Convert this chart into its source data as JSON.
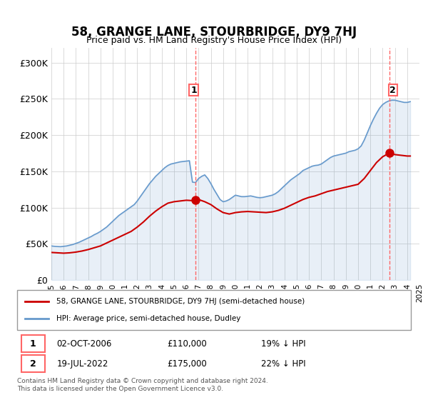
{
  "title": "58, GRANGE LANE, STOURBRIDGE, DY9 7HJ",
  "subtitle": "Price paid vs. HM Land Registry's House Price Index (HPI)",
  "ylabel_ticks": [
    "£0",
    "£50K",
    "£100K",
    "£150K",
    "£200K",
    "£250K",
    "£300K"
  ],
  "ytick_values": [
    0,
    50000,
    100000,
    150000,
    200000,
    250000,
    300000
  ],
  "ylim": [
    0,
    320000
  ],
  "xlim_years": [
    1995,
    2025
  ],
  "legend_line1": "58, GRANGE LANE, STOURBRIDGE, DY9 7HJ (semi-detached house)",
  "legend_line2": "HPI: Average price, semi-detached house, Dudley",
  "marker1_date": "02-OCT-2006",
  "marker1_price": 110000,
  "marker1_pct": "19% ↓ HPI",
  "marker2_date": "19-JUL-2022",
  "marker2_price": 175000,
  "marker2_pct": "22% ↓ HPI",
  "vline1_x": 2006.75,
  "vline2_x": 2022.54,
  "sale1_x": 2006.75,
  "sale1_y": 110000,
  "sale2_x": 2022.54,
  "sale2_y": 175000,
  "footer": "Contains HM Land Registry data © Crown copyright and database right 2024.\nThis data is licensed under the Open Government Licence v3.0.",
  "line_color_red": "#cc0000",
  "line_color_blue": "#6699cc",
  "vline_color": "#ff6666",
  "background_color": "#ffffff",
  "hpi_years": [
    1995.0,
    1995.25,
    1995.5,
    1995.75,
    1996.0,
    1996.25,
    1996.5,
    1996.75,
    1997.0,
    1997.25,
    1997.5,
    1997.75,
    1998.0,
    1998.25,
    1998.5,
    1998.75,
    1999.0,
    1999.25,
    1999.5,
    1999.75,
    2000.0,
    2000.25,
    2000.5,
    2000.75,
    2001.0,
    2001.25,
    2001.5,
    2001.75,
    2002.0,
    2002.25,
    2002.5,
    2002.75,
    2003.0,
    2003.25,
    2003.5,
    2003.75,
    2004.0,
    2004.25,
    2004.5,
    2004.75,
    2005.0,
    2005.25,
    2005.5,
    2005.75,
    2006.0,
    2006.25,
    2006.5,
    2006.75,
    2007.0,
    2007.25,
    2007.5,
    2007.75,
    2008.0,
    2008.25,
    2008.5,
    2008.75,
    2009.0,
    2009.25,
    2009.5,
    2009.75,
    2010.0,
    2010.25,
    2010.5,
    2010.75,
    2011.0,
    2011.25,
    2011.5,
    2011.75,
    2012.0,
    2012.25,
    2012.5,
    2012.75,
    2013.0,
    2013.25,
    2013.5,
    2013.75,
    2014.0,
    2014.25,
    2014.5,
    2014.75,
    2015.0,
    2015.25,
    2015.5,
    2015.75,
    2016.0,
    2016.25,
    2016.5,
    2016.75,
    2017.0,
    2017.25,
    2017.5,
    2017.75,
    2018.0,
    2018.25,
    2018.5,
    2018.75,
    2019.0,
    2019.25,
    2019.5,
    2019.75,
    2020.0,
    2020.25,
    2020.5,
    2020.75,
    2021.0,
    2021.25,
    2021.5,
    2021.75,
    2022.0,
    2022.25,
    2022.5,
    2022.75,
    2023.0,
    2023.25,
    2023.5,
    2023.75,
    2024.0,
    2024.25
  ],
  "hpi_values": [
    47000,
    46500,
    46200,
    46000,
    46500,
    47000,
    48000,
    49000,
    50500,
    52000,
    54000,
    56000,
    58000,
    60000,
    62500,
    64500,
    67000,
    70000,
    73000,
    77000,
    81000,
    85000,
    89000,
    92000,
    95000,
    98000,
    101000,
    104000,
    109000,
    115000,
    121000,
    127000,
    133000,
    138000,
    143000,
    147000,
    151000,
    155000,
    158000,
    160000,
    161000,
    162000,
    163000,
    163500,
    164000,
    164500,
    135000,
    134500,
    140000,
    143000,
    145000,
    140000,
    133000,
    125000,
    118000,
    111000,
    108000,
    109000,
    111000,
    114000,
    117000,
    116000,
    115000,
    115000,
    115500,
    116000,
    115000,
    114000,
    113500,
    114000,
    115000,
    116000,
    117000,
    119000,
    122000,
    126000,
    130000,
    134000,
    138000,
    141000,
    144000,
    147000,
    151000,
    153000,
    155000,
    157000,
    158000,
    158500,
    160000,
    163000,
    166000,
    169000,
    171000,
    172000,
    173000,
    174000,
    175000,
    177000,
    178000,
    179000,
    181000,
    185000,
    193000,
    203000,
    213000,
    222000,
    230000,
    237000,
    242000,
    245000,
    247000,
    248000,
    248000,
    247000,
    246000,
    245000,
    245000,
    246000
  ],
  "red_years": [
    1995.0,
    1995.5,
    1996.0,
    1996.5,
    1997.0,
    1997.5,
    1998.0,
    1998.5,
    1999.0,
    1999.5,
    2000.0,
    2000.5,
    2001.0,
    2001.5,
    2002.0,
    2002.5,
    2003.0,
    2003.5,
    2004.0,
    2004.5,
    2005.0,
    2005.5,
    2006.0,
    2006.5,
    2006.75,
    2007.0,
    2007.5,
    2008.0,
    2008.5,
    2009.0,
    2009.5,
    2010.0,
    2010.5,
    2011.0,
    2011.5,
    2012.0,
    2012.5,
    2013.0,
    2013.5,
    2014.0,
    2014.5,
    2015.0,
    2015.5,
    2016.0,
    2016.5,
    2017.0,
    2017.5,
    2018.0,
    2018.5,
    2019.0,
    2019.5,
    2020.0,
    2020.5,
    2021.0,
    2021.5,
    2022.0,
    2022.54,
    2022.75,
    2023.0,
    2023.5,
    2024.0,
    2024.25
  ],
  "red_values": [
    38000,
    37500,
    37000,
    37500,
    38500,
    40000,
    42000,
    44500,
    47000,
    51000,
    55000,
    59000,
    63000,
    67000,
    73000,
    80000,
    88000,
    95000,
    101000,
    106000,
    108000,
    109000,
    110000,
    109500,
    110000,
    111000,
    108000,
    104000,
    98000,
    93000,
    91000,
    93000,
    94000,
    94500,
    94000,
    93500,
    93000,
    94000,
    96000,
    99000,
    103000,
    107000,
    111000,
    114000,
    116000,
    119000,
    122000,
    124000,
    126000,
    128000,
    130000,
    132000,
    140000,
    151000,
    162000,
    170000,
    175000,
    174000,
    173000,
    172000,
    171000,
    171000
  ]
}
